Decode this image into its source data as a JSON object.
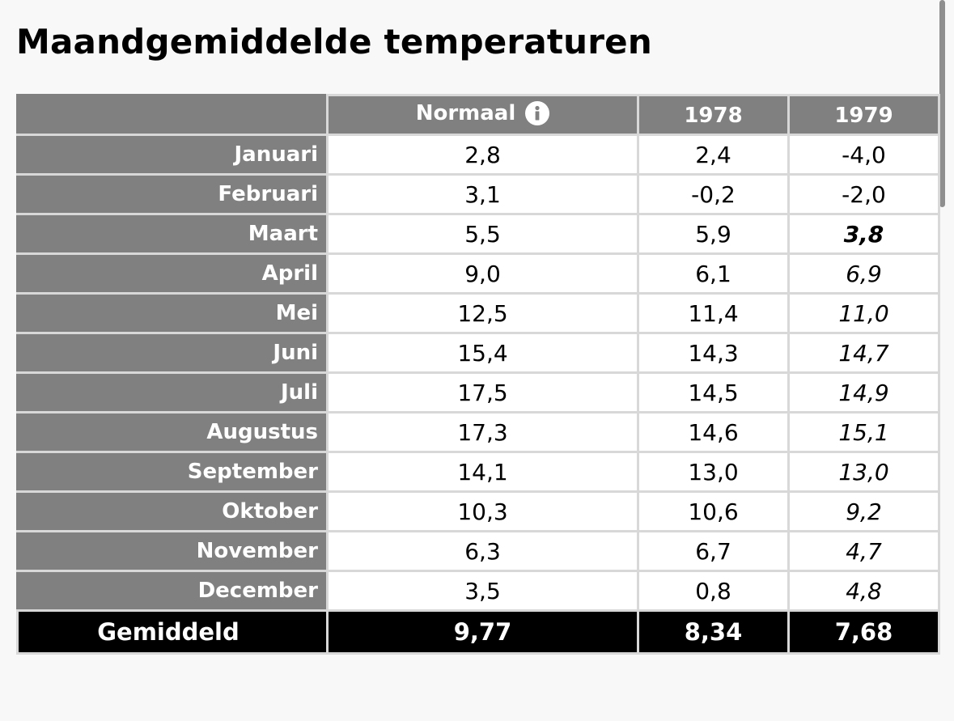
{
  "title": "Maandgemiddelde temperaturen",
  "columns": {
    "normaal": "Normaal",
    "y1978": "1978",
    "y1979": "1979",
    "info_icon": "info-icon"
  },
  "rows": [
    {
      "month": "Januari",
      "normaal": "2,8",
      "y1978": "2,4",
      "y1979": "-4,0",
      "style1979": "normal"
    },
    {
      "month": "Februari",
      "normaal": "3,1",
      "y1978": "-0,2",
      "y1979": "-2,0",
      "style1979": "normal"
    },
    {
      "month": "Maart",
      "normaal": "5,5",
      "y1978": "5,9",
      "y1979": "3,8",
      "style1979": "bold-italic"
    },
    {
      "month": "April",
      "normaal": "9,0",
      "y1978": "6,1",
      "y1979": "6,9",
      "style1979": "italic"
    },
    {
      "month": "Mei",
      "normaal": "12,5",
      "y1978": "11,4",
      "y1979": "11,0",
      "style1979": "italic"
    },
    {
      "month": "Juni",
      "normaal": "15,4",
      "y1978": "14,3",
      "y1979": "14,7",
      "style1979": "italic"
    },
    {
      "month": "Juli",
      "normaal": "17,5",
      "y1978": "14,5",
      "y1979": "14,9",
      "style1979": "italic"
    },
    {
      "month": "Augustus",
      "normaal": "17,3",
      "y1978": "14,6",
      "y1979": "15,1",
      "style1979": "italic"
    },
    {
      "month": "September",
      "normaal": "14,1",
      "y1978": "13,0",
      "y1979": "13,0",
      "style1979": "italic"
    },
    {
      "month": "Oktober",
      "normaal": "10,3",
      "y1978": "10,6",
      "y1979": "9,2",
      "style1979": "italic"
    },
    {
      "month": "November",
      "normaal": "6,3",
      "y1978": "6,7",
      "y1979": "4,7",
      "style1979": "italic"
    },
    {
      "month": "December",
      "normaal": "3,5",
      "y1978": "0,8",
      "y1979": "4,8",
      "style1979": "italic"
    }
  ],
  "total": {
    "label": "Gemiddeld",
    "normaal": "9,77",
    "y1978": "8,34",
    "y1979": "7,68"
  },
  "colors": {
    "header_bg": "#808080",
    "total_bg": "#000000",
    "grid": "#d8d8d8"
  }
}
